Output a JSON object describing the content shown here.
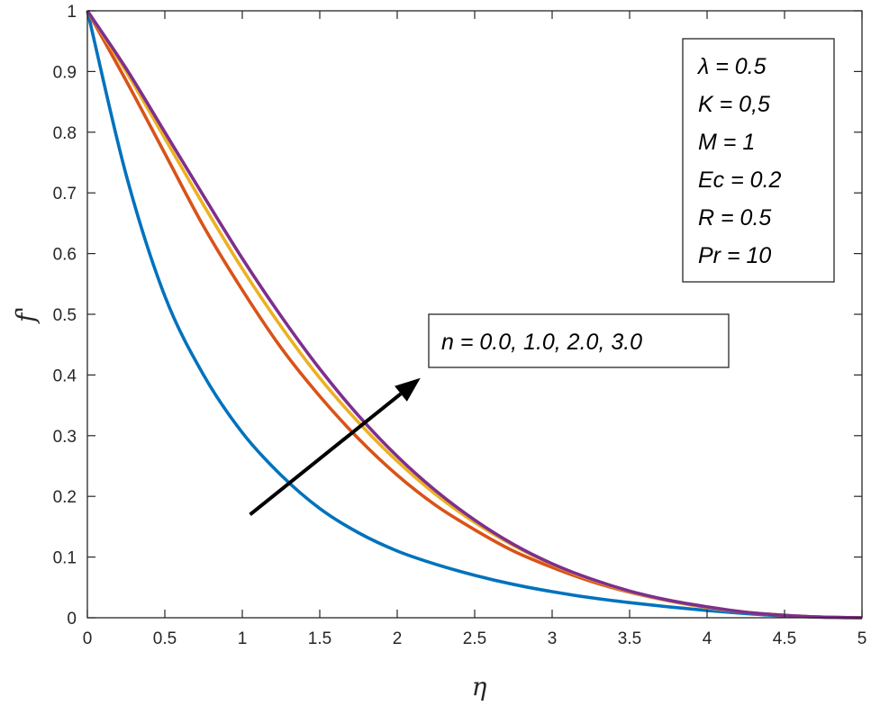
{
  "chart_data": {
    "type": "line",
    "xlabel": "η",
    "ylabel": "f'",
    "xlim": [
      0,
      5
    ],
    "ylim": [
      0,
      1
    ],
    "xticks": [
      "0",
      "0.5",
      "1",
      "1.5",
      "2",
      "2.5",
      "3",
      "3.5",
      "4",
      "4.5",
      "5"
    ],
    "yticks": [
      "0",
      "0.1",
      "0.2",
      "0.3",
      "0.4",
      "0.5",
      "0.6",
      "0.7",
      "0.8",
      "0.9",
      "1"
    ],
    "grid": false,
    "parameters": [
      "λ = 0.5",
      "K = 0,5",
      "M = 1",
      "Ec = 0.2",
      "R = 0.5",
      "Pr = 10"
    ],
    "annotation": "n = 0.0, 1.0, 2.0, 3.0",
    "x": [
      0,
      0.25,
      0.5,
      0.75,
      1.0,
      1.25,
      1.5,
      1.75,
      2.0,
      2.25,
      2.5,
      2.75,
      3.0,
      3.25,
      3.5,
      3.75,
      4.0,
      4.25,
      4.5,
      4.75,
      5.0
    ],
    "series": [
      {
        "color": "#0072BD",
        "values": [
          1.0,
          0.73,
          0.53,
          0.4,
          0.305,
          0.235,
          0.18,
          0.14,
          0.11,
          0.088,
          0.07,
          0.055,
          0.043,
          0.033,
          0.025,
          0.018,
          0.012,
          0.007,
          0.003,
          0.001,
          0.0
        ]
      },
      {
        "color": "#D95319",
        "values": [
          1.0,
          0.885,
          0.765,
          0.645,
          0.54,
          0.445,
          0.365,
          0.295,
          0.235,
          0.185,
          0.145,
          0.11,
          0.083,
          0.06,
          0.042,
          0.028,
          0.017,
          0.009,
          0.004,
          0.001,
          0.0
        ]
      },
      {
        "color": "#EDB120",
        "values": [
          1.0,
          0.9,
          0.79,
          0.68,
          0.575,
          0.48,
          0.395,
          0.322,
          0.258,
          0.203,
          0.157,
          0.119,
          0.088,
          0.063,
          0.043,
          0.028,
          0.017,
          0.009,
          0.004,
          0.001,
          0.0
        ]
      },
      {
        "color": "#7E2F8E",
        "values": [
          1.0,
          0.905,
          0.8,
          0.695,
          0.592,
          0.497,
          0.41,
          0.333,
          0.266,
          0.209,
          0.161,
          0.121,
          0.089,
          0.064,
          0.044,
          0.029,
          0.018,
          0.009,
          0.004,
          0.001,
          0.0
        ]
      }
    ],
    "arrow": {
      "from": [
        1.05,
        0.17
      ],
      "to": [
        2.15,
        0.395
      ]
    }
  }
}
